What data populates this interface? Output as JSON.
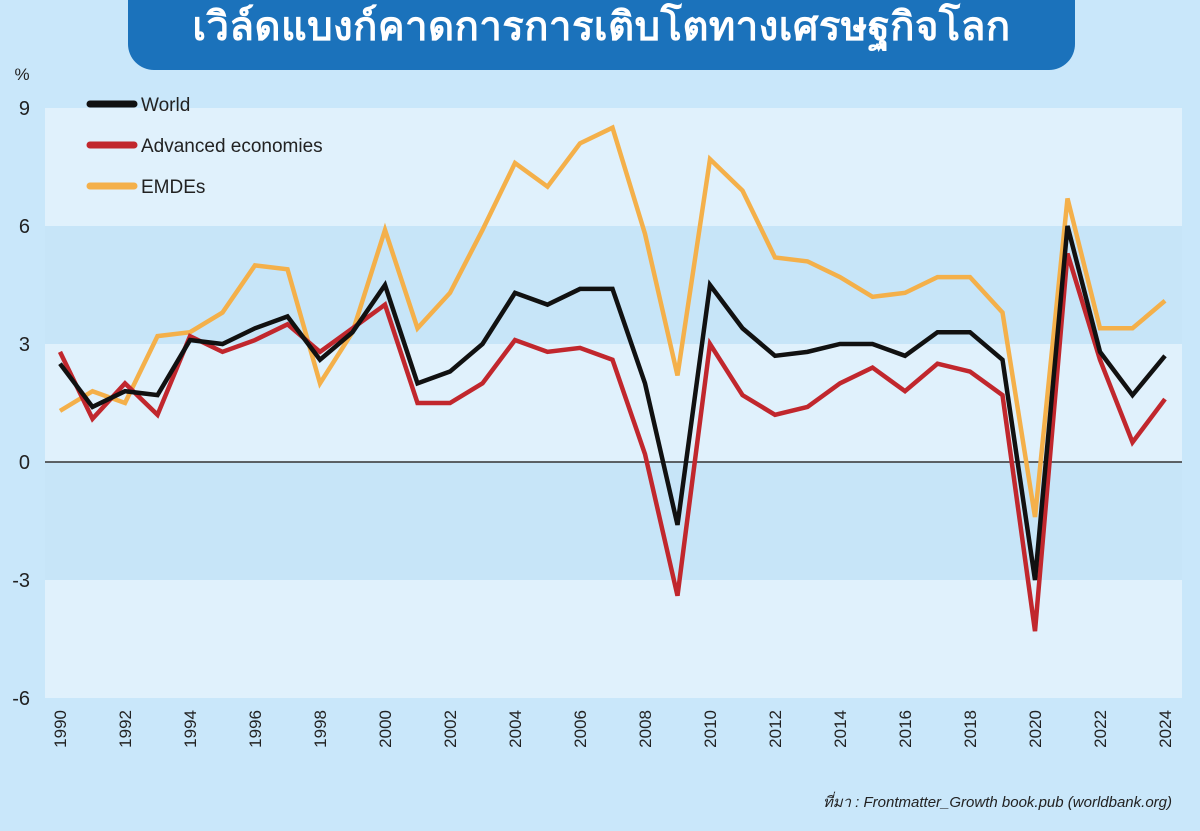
{
  "title": "เวิล์ดแบงก์คาดการการเติบโตทางเศรษฐกิจโลก",
  "source": "ที่มา : Frontmatter_Growth book.pub (worldbank.org)",
  "chart_data": {
    "type": "line",
    "title": "เวิล์ดแบงก์คาดการการเติบโตทางเศรษฐกิจโลก",
    "ylabel": "%",
    "xlabel": "",
    "ylim": [
      -6,
      9
    ],
    "yticks": [
      9,
      6,
      3,
      0,
      -3,
      -6
    ],
    "xlim": [
      1990,
      2024
    ],
    "xticks": [
      1990,
      1992,
      1994,
      1996,
      1998,
      2000,
      2002,
      2004,
      2006,
      2008,
      2010,
      2012,
      2014,
      2016,
      2018,
      2020,
      2022,
      2024
    ],
    "legend": "top-left",
    "grid": "alternating horizontal bands",
    "x": [
      1990,
      1991,
      1992,
      1993,
      1994,
      1995,
      1996,
      1997,
      1998,
      1999,
      2000,
      2001,
      2002,
      2003,
      2004,
      2005,
      2006,
      2007,
      2008,
      2009,
      2010,
      2011,
      2012,
      2013,
      2014,
      2015,
      2016,
      2017,
      2018,
      2019,
      2020,
      2021,
      2022,
      2023,
      2024
    ],
    "series": [
      {
        "name": "World",
        "color": "#111111",
        "values": [
          2.5,
          1.4,
          1.8,
          1.7,
          3.1,
          3.0,
          3.4,
          3.7,
          2.6,
          3.3,
          4.5,
          2.0,
          2.3,
          3.0,
          4.3,
          4.0,
          4.4,
          4.4,
          2.0,
          -1.6,
          4.5,
          3.4,
          2.7,
          2.8,
          3.0,
          3.0,
          2.7,
          3.3,
          3.3,
          2.6,
          -3.0,
          6.0,
          2.8,
          1.7,
          2.7
        ]
      },
      {
        "name": "Advanced economies",
        "color": "#c1272d",
        "values": [
          2.8,
          1.1,
          2.0,
          1.2,
          3.2,
          2.8,
          3.1,
          3.5,
          2.8,
          3.4,
          4.0,
          1.5,
          1.5,
          2.0,
          3.1,
          2.8,
          2.9,
          2.6,
          0.2,
          -3.4,
          3.0,
          1.7,
          1.2,
          1.4,
          2.0,
          2.4,
          1.8,
          2.5,
          2.3,
          1.7,
          -4.3,
          5.3,
          2.6,
          0.5,
          1.6
        ]
      },
      {
        "name": "EMDEs",
        "color": "#f4b04a",
        "values": [
          1.3,
          1.8,
          1.5,
          3.2,
          3.3,
          3.8,
          5.0,
          4.9,
          2.0,
          3.3,
          5.9,
          3.4,
          4.3,
          5.9,
          7.6,
          7.0,
          8.1,
          8.5,
          5.8,
          2.2,
          7.7,
          6.9,
          5.2,
          5.1,
          4.7,
          4.2,
          4.3,
          4.7,
          4.7,
          3.8,
          -1.4,
          6.7,
          3.4,
          3.4,
          4.1
        ]
      }
    ]
  }
}
